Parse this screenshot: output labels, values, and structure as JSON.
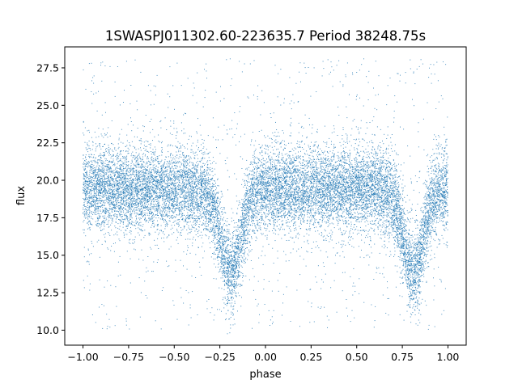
{
  "chart_data": {
    "type": "scatter",
    "title": "1SWASPJ011302.60-223635.7 Period 38248.75s",
    "xlabel": "phase",
    "ylabel": "flux",
    "xlim": [
      -1.1,
      1.1
    ],
    "ylim": [
      9.0,
      28.9
    ],
    "x_ticks": [
      -1.0,
      -0.75,
      -0.5,
      -0.25,
      0.0,
      0.25,
      0.5,
      0.75,
      1.0
    ],
    "x_tick_labels": [
      "−1.00",
      "−0.75",
      "−0.50",
      "−0.25",
      "0.00",
      "0.25",
      "0.50",
      "0.75",
      "1.00"
    ],
    "y_ticks": [
      10.0,
      12.5,
      15.0,
      17.5,
      20.0,
      22.5,
      25.0,
      27.5
    ],
    "y_tick_labels": [
      "10.0",
      "12.5",
      "15.0",
      "17.5",
      "20.0",
      "22.5",
      "25.0",
      "27.5"
    ],
    "grid": false,
    "marker_color": "#1f77b4",
    "series": [
      {
        "phase_range": [
          -1.0,
          1.0
        ],
        "baseline_flux": 19.4,
        "scatter_sd": 1.4,
        "minima": [
          {
            "phase": -0.19,
            "flux": 13.8,
            "width": 0.055
          },
          {
            "phase": 0.81,
            "flux": 13.8,
            "width": 0.055
          }
        ],
        "outlier_flux_range": [
          10.0,
          28.2
        ]
      }
    ]
  }
}
